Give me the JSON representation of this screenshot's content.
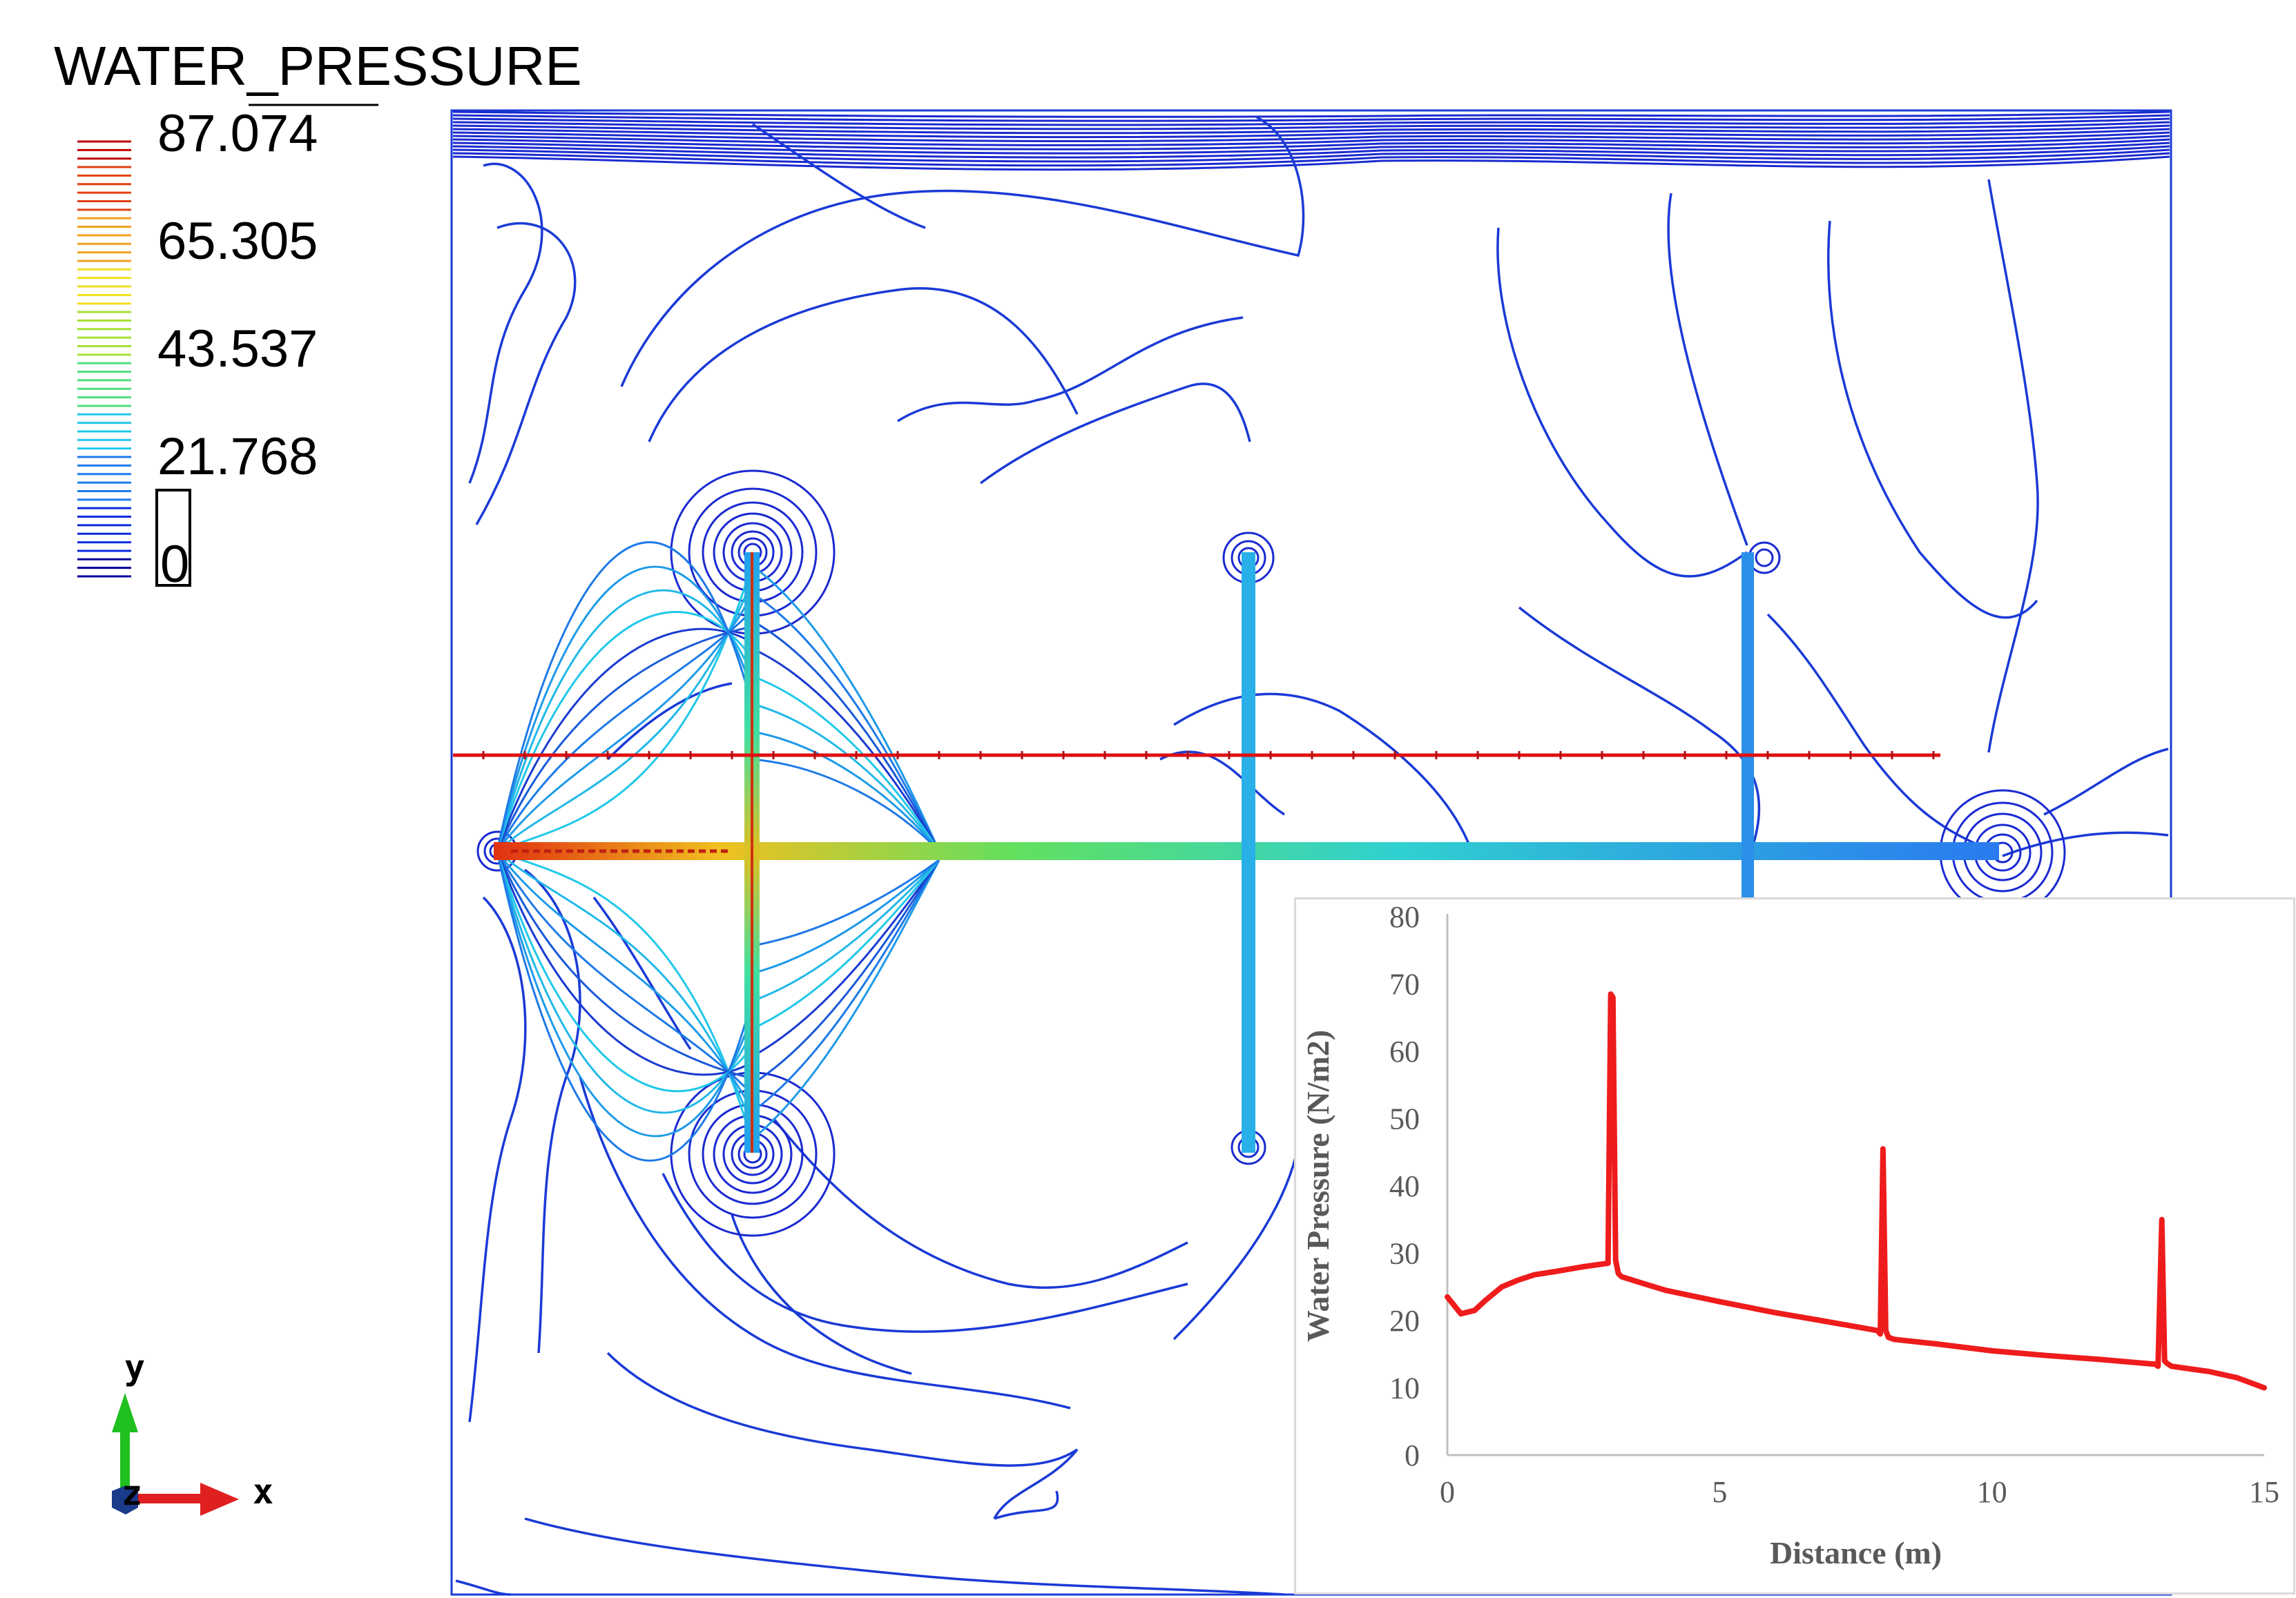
{
  "legend": {
    "title": "WATER_PRESSURE",
    "ticks": [
      "87.074",
      "65.305",
      "43.537",
      "21.768",
      "0"
    ],
    "max": 87.074,
    "min": 0,
    "colormap": [
      "#00009a",
      "#0a2ae0",
      "#1e7af0",
      "#22c8e8",
      "#4ce07a",
      "#a8e030",
      "#f0e020",
      "#f0a020",
      "#e04010",
      "#c00000"
    ]
  },
  "axes_triad": {
    "x_label": "x",
    "y_label": "y",
    "z_label": "z",
    "x_color": "#e02020",
    "y_color": "#20c020",
    "z_color": "#1a3a8a"
  },
  "contour_plot": {
    "line_color": "#1a3ad6",
    "fracture_color": "#2ab0e8",
    "section_line_color": "#e01010"
  },
  "chart_data": {
    "type": "line",
    "title": "",
    "xlabel": "Distance (m)",
    "ylabel": "Water Pressure (N/m2)",
    "xlim": [
      0,
      15
    ],
    "ylim": [
      0,
      80
    ],
    "xticks": [
      0,
      5,
      10,
      15
    ],
    "yticks": [
      0,
      10,
      20,
      30,
      40,
      50,
      60,
      70,
      80
    ],
    "grid": false,
    "series": [
      {
        "color": "#ee1c1c",
        "x": [
          0,
          0.25,
          0.5,
          0.7,
          1.0,
          1.3,
          1.6,
          2.0,
          2.5,
          2.95,
          3.0,
          3.04,
          3.09,
          3.14,
          3.2,
          3.6,
          4.0,
          5.0,
          6.0,
          7.0,
          7.9,
          7.95,
          8.0,
          8.05,
          8.1,
          8.2,
          9.0,
          10.0,
          11.0,
          12.0,
          13.0,
          13.05,
          13.12,
          13.17,
          13.22,
          13.3,
          14.0,
          14.5,
          15.0
        ],
        "y": [
          23.5,
          21.0,
          21.5,
          23.0,
          25.0,
          26.0,
          26.8,
          27.3,
          28.0,
          28.5,
          68.5,
          68.0,
          29.0,
          27.0,
          26.5,
          25.5,
          24.5,
          22.8,
          21.2,
          19.8,
          18.5,
          18.0,
          45.5,
          18.5,
          17.5,
          17.2,
          16.5,
          15.5,
          14.8,
          14.2,
          13.5,
          13.2,
          35.0,
          14.0,
          13.6,
          13.2,
          12.4,
          11.5,
          10.0
        ]
      }
    ]
  }
}
